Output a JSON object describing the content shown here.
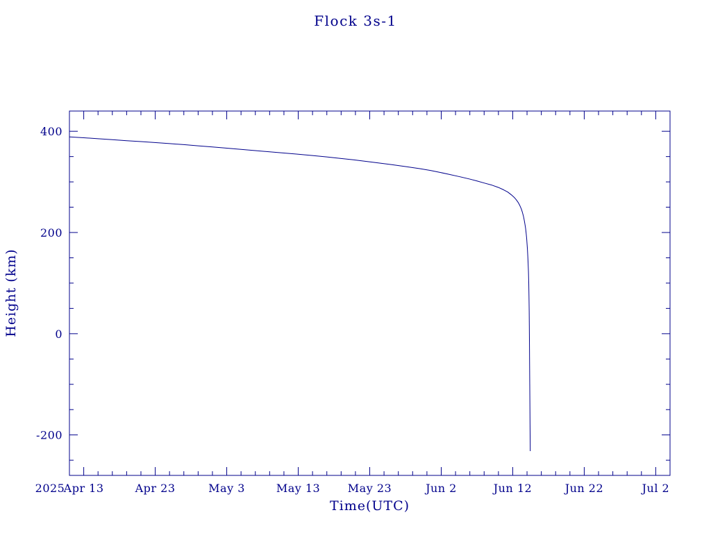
{
  "chart_data": {
    "type": "line",
    "title": "Flock 3s-1",
    "xlabel": "Time(UTC)",
    "ylabel": "Height (km)",
    "year_label": "2025",
    "colors": {
      "ink": "#00008b",
      "line": "#00008b",
      "background": "#ffffff"
    },
    "x_axis": {
      "range": [
        0,
        84
      ],
      "unit": "days along axis (tick labels are 2025 UTC dates)",
      "major_ticks": [
        {
          "pos": 2,
          "label": "Apr 13"
        },
        {
          "pos": 12,
          "label": "Apr 23"
        },
        {
          "pos": 22,
          "label": "May 3"
        },
        {
          "pos": 32,
          "label": "May 13"
        },
        {
          "pos": 42,
          "label": "May 23"
        },
        {
          "pos": 52,
          "label": "Jun 2"
        },
        {
          "pos": 62,
          "label": "Jun 12"
        },
        {
          "pos": 72,
          "label": "Jun 22"
        },
        {
          "pos": 82,
          "label": "Jul 2"
        }
      ],
      "minor_step": 2
    },
    "y_axis": {
      "range": [
        -280,
        440
      ],
      "major_ticks": [
        {
          "pos": -200,
          "label": "-200"
        },
        {
          "pos": 0,
          "label": "0"
        },
        {
          "pos": 200,
          "label": "200"
        },
        {
          "pos": 400,
          "label": "400"
        }
      ],
      "minor_step": 50
    },
    "legend": null,
    "grid": false,
    "series": [
      {
        "name": "height_km",
        "points": [
          [
            0,
            389
          ],
          [
            2,
            387.2
          ],
          [
            4,
            385.3
          ],
          [
            6,
            383.4
          ],
          [
            8,
            381.4
          ],
          [
            10,
            379.6
          ],
          [
            11.75,
            378
          ],
          [
            14,
            375.7
          ],
          [
            16,
            373.6
          ],
          [
            18,
            371.3
          ],
          [
            20,
            369
          ],
          [
            21.75,
            367
          ],
          [
            24,
            364.3
          ],
          [
            26,
            361.8
          ],
          [
            28,
            359.4
          ],
          [
            30,
            357
          ],
          [
            31.75,
            355
          ],
          [
            34,
            352
          ],
          [
            36,
            349.3
          ],
          [
            38,
            346.3
          ],
          [
            40,
            343.2
          ],
          [
            41.75,
            340
          ],
          [
            43,
            337.8
          ],
          [
            45,
            334.2
          ],
          [
            47,
            330.3
          ],
          [
            49,
            326.1
          ],
          [
            50.5,
            322.6
          ],
          [
            51.75,
            319
          ],
          [
            53,
            315.2
          ],
          [
            54.5,
            310.5
          ],
          [
            56,
            305.5
          ],
          [
            57,
            301.8
          ],
          [
            58,
            297.8
          ],
          [
            59,
            294
          ],
          [
            60,
            289
          ],
          [
            60.7,
            284.5
          ],
          [
            61.3,
            280
          ],
          [
            61.8,
            274.5
          ],
          [
            62.2,
            269.5
          ],
          [
            62.5,
            264.5
          ],
          [
            62.8,
            258.5
          ],
          [
            63.0,
            253
          ],
          [
            63.2,
            246.5
          ],
          [
            63.35,
            240
          ],
          [
            63.5,
            232
          ],
          [
            63.6,
            225
          ],
          [
            63.7,
            217
          ],
          [
            63.8,
            208
          ],
          [
            63.88,
            198
          ],
          [
            63.95,
            188
          ],
          [
            64.0,
            178
          ],
          [
            64.05,
            168
          ],
          [
            64.1,
            155
          ],
          [
            64.15,
            140
          ],
          [
            64.2,
            122
          ],
          [
            64.24,
            100
          ],
          [
            64.27,
            75
          ],
          [
            64.3,
            45
          ],
          [
            64.32,
            15
          ],
          [
            64.34,
            -20
          ],
          [
            64.36,
            -60
          ],
          [
            64.38,
            -100
          ],
          [
            64.4,
            -140
          ],
          [
            64.42,
            -180
          ],
          [
            64.44,
            -215
          ],
          [
            64.45,
            -232
          ]
        ]
      }
    ]
  }
}
